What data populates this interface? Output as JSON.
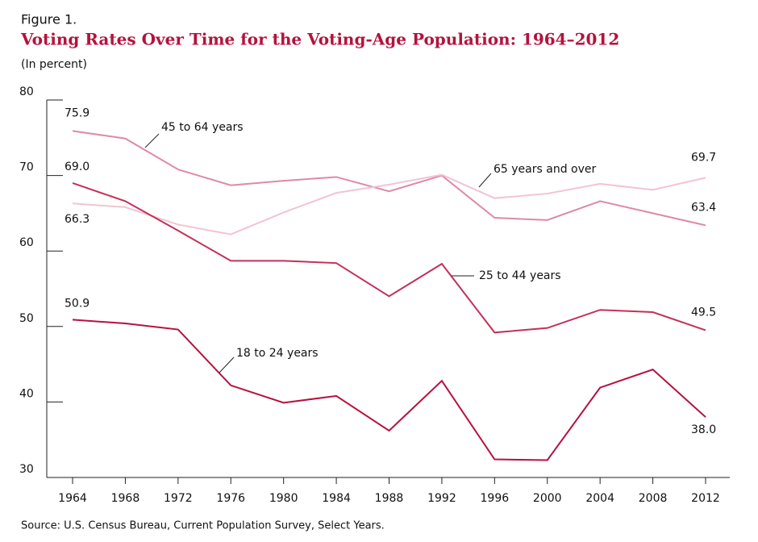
{
  "chart_data": {
    "type": "line",
    "figure_label": "Figure 1.",
    "title": "Voting Rates Over Time for the Voting-Age Population: 1964–2012",
    "subtitle": "(In percent)",
    "source": "Source: U.S. Census Bureau, Current Population Survey, Select Years.",
    "x": [
      1964,
      1968,
      1972,
      1976,
      1980,
      1984,
      1988,
      1992,
      1996,
      2000,
      2004,
      2008,
      2012
    ],
    "xlim": [
      1964,
      2012
    ],
    "xticks": [
      1964,
      1968,
      1972,
      1976,
      1980,
      1984,
      1988,
      1992,
      1996,
      2000,
      2004,
      2008,
      2012
    ],
    "ylim": [
      30,
      80
    ],
    "yticks": [
      30,
      40,
      50,
      60,
      70,
      80
    ],
    "series": [
      {
        "name": "45 to 64 years",
        "color": "#dd8aa5",
        "values": [
          75.9,
          74.9,
          70.8,
          68.7,
          69.3,
          69.8,
          67.9,
          70.0,
          64.4,
          64.1,
          66.6,
          65.0,
          63.4
        ],
        "value_labels": [
          "75.9",
          null,
          null,
          null,
          null,
          null,
          null,
          null,
          null,
          null,
          null,
          null,
          "63.4"
        ]
      },
      {
        "name": "65 years and over",
        "color": "#f2c4d1",
        "values": [
          66.3,
          65.8,
          63.5,
          62.2,
          65.1,
          67.7,
          68.8,
          70.1,
          67.0,
          67.6,
          68.9,
          68.1,
          69.7
        ],
        "value_labels": [
          "66.3",
          null,
          null,
          null,
          null,
          null,
          null,
          null,
          null,
          null,
          null,
          null,
          "69.7"
        ]
      },
      {
        "name": "25 to 44 years",
        "color": "#c3305a",
        "values": [
          69.0,
          66.6,
          62.7,
          58.7,
          58.7,
          58.4,
          54.0,
          58.3,
          49.2,
          49.8,
          52.2,
          51.9,
          49.5
        ],
        "value_labels": [
          "69.0",
          null,
          null,
          null,
          null,
          null,
          null,
          null,
          null,
          null,
          null,
          null,
          "49.5"
        ]
      },
      {
        "name": "18 to 24 years",
        "color": "#b5123e",
        "values": [
          50.9,
          50.4,
          49.6,
          42.2,
          39.9,
          40.8,
          36.2,
          42.8,
          32.4,
          32.3,
          41.9,
          44.3,
          38.0
        ],
        "value_labels": [
          "50.9",
          null,
          null,
          null,
          null,
          null,
          null,
          null,
          null,
          null,
          null,
          null,
          "38.0"
        ]
      }
    ]
  }
}
